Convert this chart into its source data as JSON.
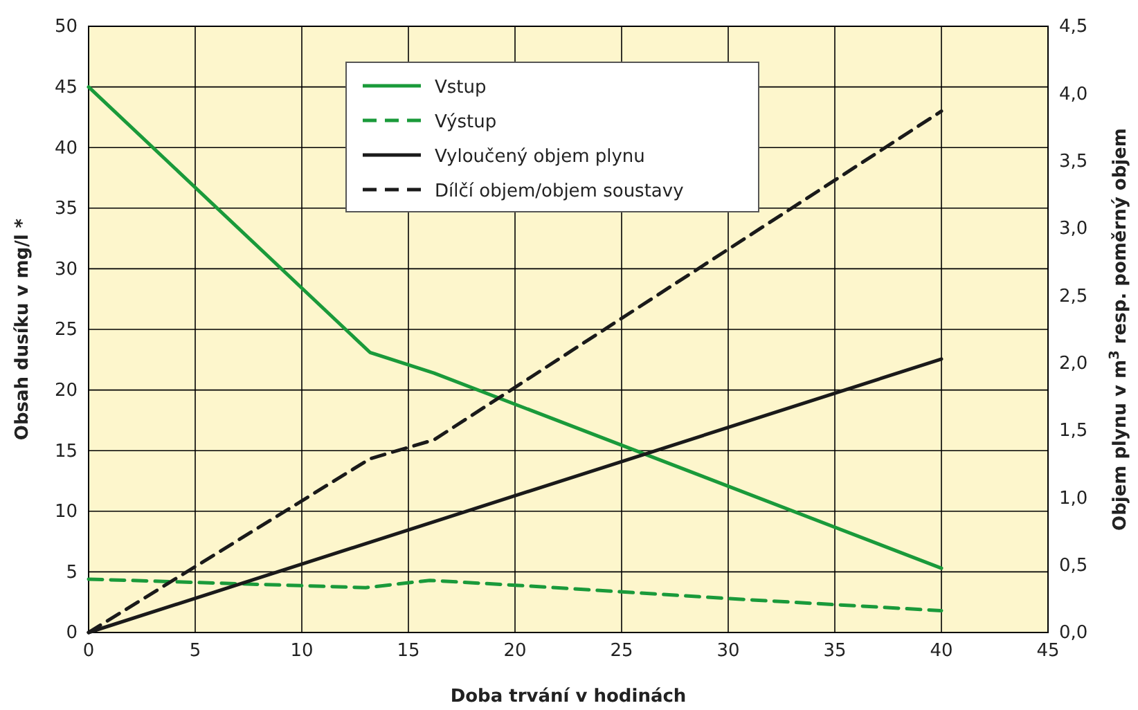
{
  "chart_data": {
    "type": "line",
    "xlabel": "Doba trvání v hodinách",
    "ylabel": "Obsah dusíku v mg/l *",
    "y2label": "Objem plynu v m$^{3}$ resp. poměrný objem",
    "xlim": [
      0,
      45
    ],
    "xticks": [
      0,
      5,
      10,
      15,
      20,
      25,
      30,
      35,
      40,
      45
    ],
    "ylim": [
      0,
      50
    ],
    "yticks": [
      0,
      5,
      10,
      15,
      20,
      25,
      30,
      35,
      40,
      45,
      50
    ],
    "y2lim": [
      0,
      4.5
    ],
    "y2ticks": [
      {
        "value": 0,
        "label": "0,0"
      },
      {
        "value": 0.5,
        "label": "0,5"
      },
      {
        "value": 1,
        "label": "1,0"
      },
      {
        "value": 1.5,
        "label": "1,5"
      },
      {
        "value": 2,
        "label": "2,0"
      },
      {
        "value": 2.5,
        "label": "2,5"
      },
      {
        "value": 3,
        "label": "3,0"
      },
      {
        "value": 3.5,
        "label": "3,5"
      },
      {
        "value": 4,
        "label": "4,0"
      },
      {
        "value": 4.5,
        "label": "4,5"
      }
    ],
    "grid": true,
    "legend": "top",
    "marker": "none",
    "series": [
      {
        "name": "Vstup",
        "color": "#1a9a3a",
        "line_style": "solid",
        "x": [
          0,
          13.2,
          16.2,
          40
        ],
        "values": [
          45,
          23.1,
          21.4,
          5.3
        ]
      },
      {
        "name": "Výstup",
        "color": "#1a9a3a",
        "line_style": "dashed",
        "x": [
          0,
          13,
          16,
          20,
          30,
          40
        ],
        "values": [
          4.4,
          3.7,
          4.3,
          3.9,
          2.8,
          1.8
        ]
      },
      {
        "name": "Vyloučený objem plynu",
        "color": "#1a1a1a",
        "line_style": "solid",
        "axis": "y2",
        "x": [
          0,
          40
        ],
        "values": [
          0,
          2.03
        ]
      },
      {
        "name": "Dílčí objem/objem soustavy",
        "color": "#1a1a1a",
        "line_style": "dashed",
        "axis": "y2",
        "x": [
          0,
          13.2,
          16.2,
          40
        ],
        "values": [
          0,
          1.29,
          1.43,
          3.87
        ]
      }
    ]
  }
}
